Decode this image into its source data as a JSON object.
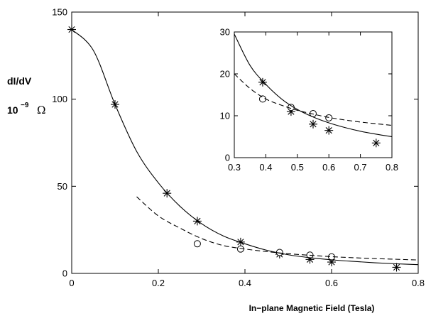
{
  "chart_data": [
    {
      "type": "scatter",
      "title": "",
      "xlabel": "In−plane Magnetic Field  (Tesla)",
      "ylabel": {
        "line1": "dI/dV",
        "line2_base": "10",
        "line2_exponent": "−9",
        "line2_unit": "Ω"
      },
      "xlim": [
        0,
        0.8
      ],
      "ylim": [
        0,
        150
      ],
      "xticks": [
        "0",
        "0.2",
        "0.4",
        "0.6",
        "0.8"
      ],
      "yticks": [
        "0",
        "50",
        "100",
        "150"
      ],
      "grid": false,
      "legend": "none",
      "series": [
        {
          "marker": "asterisk",
          "x": [
            0.0,
            0.1,
            0.22,
            0.29,
            0.39,
            0.48,
            0.55,
            0.6,
            0.75
          ],
          "y": [
            140,
            97,
            46,
            30,
            18,
            11,
            8,
            6.5,
            3.5
          ]
        },
        {
          "marker": "circle",
          "x": [
            0.29,
            0.39,
            0.48,
            0.55,
            0.6
          ],
          "y": [
            17,
            14,
            12,
            10.5,
            9.5
          ]
        },
        {
          "style": "solid-line",
          "x": [
            0.0,
            0.05,
            0.1,
            0.15,
            0.2,
            0.25,
            0.3,
            0.35,
            0.4,
            0.45,
            0.5,
            0.55,
            0.6,
            0.65,
            0.7,
            0.75,
            0.8
          ],
          "y": [
            140,
            128,
            97,
            70,
            52,
            38.5,
            28.5,
            21.5,
            17,
            13.3,
            10.7,
            9,
            7.8,
            6.9,
            6.1,
            5.5,
            5
          ]
        },
        {
          "style": "dashed-line",
          "x": [
            0.15,
            0.2,
            0.25,
            0.3,
            0.35,
            0.4,
            0.45,
            0.5,
            0.55,
            0.6,
            0.65,
            0.7,
            0.75,
            0.8
          ],
          "y": [
            44,
            33,
            26,
            20,
            16,
            14,
            12.5,
            11.3,
            10.4,
            9.6,
            9,
            8.5,
            8.1,
            7.7
          ]
        }
      ]
    },
    {
      "type": "scatter",
      "title": "",
      "role": "inset",
      "xlim": [
        0.3,
        0.8
      ],
      "ylim": [
        0,
        30
      ],
      "xticks": [
        "0.3",
        "0.4",
        "0.5",
        "0.6",
        "0.7",
        "0.8"
      ],
      "yticks": [
        "0",
        "10",
        "20",
        "30"
      ],
      "grid": false,
      "legend": "none",
      "series": [
        {
          "marker": "asterisk",
          "x": [
            0.39,
            0.48,
            0.55,
            0.6,
            0.75
          ],
          "y": [
            18,
            11,
            8,
            6.5,
            3.5
          ]
        },
        {
          "marker": "circle",
          "x": [
            0.39,
            0.48,
            0.55,
            0.6
          ],
          "y": [
            14,
            12,
            10.5,
            9.5
          ]
        },
        {
          "style": "solid-line",
          "x": [
            0.3,
            0.35,
            0.4,
            0.45,
            0.5,
            0.55,
            0.6,
            0.65,
            0.7,
            0.75,
            0.8
          ],
          "y": [
            29.5,
            22,
            17.5,
            14,
            11.5,
            9.7,
            8.3,
            7.2,
            6.3,
            5.6,
            5
          ]
        },
        {
          "style": "dashed-line",
          "x": [
            0.3,
            0.35,
            0.4,
            0.45,
            0.5,
            0.55,
            0.6,
            0.65,
            0.7,
            0.75,
            0.8
          ],
          "y": [
            20,
            16.5,
            14,
            12.5,
            11.3,
            10.4,
            9.6,
            9,
            8.5,
            8.1,
            7.7
          ]
        }
      ]
    }
  ]
}
